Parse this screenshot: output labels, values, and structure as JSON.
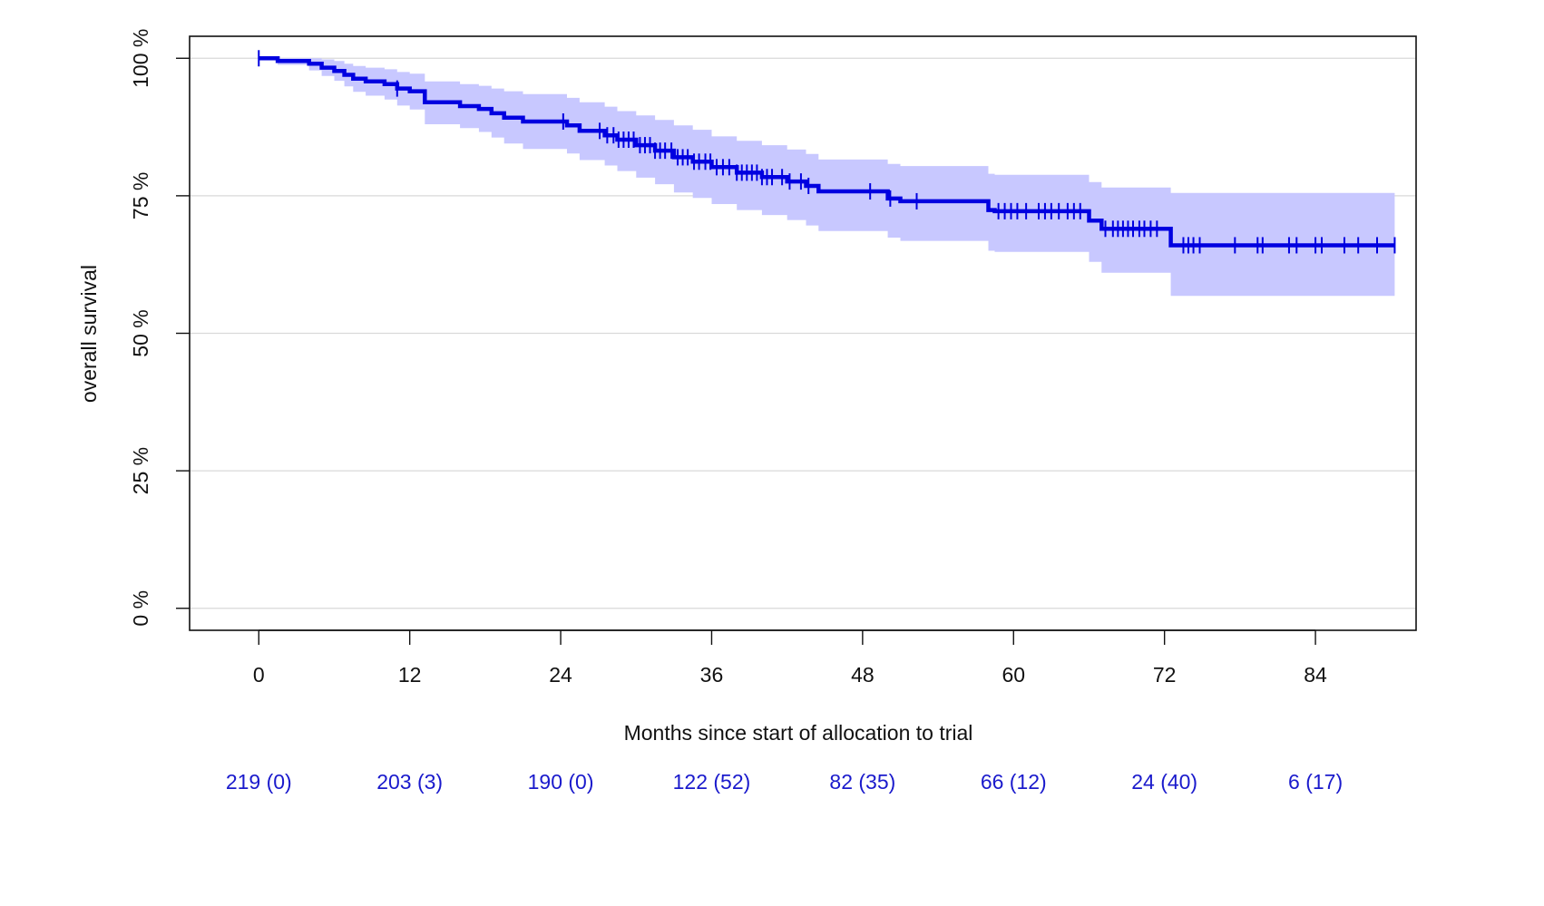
{
  "chart_data": {
    "type": "line",
    "subtype": "kaplan-meier",
    "title": "",
    "xlabel": "Months since start of allocation to trial",
    "ylabel": "overall survival",
    "xlim": [
      -5.5,
      92
    ],
    "ylim": [
      -4,
      104
    ],
    "x_ticks": [
      0,
      12,
      24,
      36,
      48,
      60,
      72,
      84
    ],
    "x_tick_labels": [
      "0",
      "12",
      "24",
      "36",
      "48",
      "60",
      "72",
      "84"
    ],
    "y_ticks": [
      0,
      25,
      50,
      75,
      100
    ],
    "y_tick_labels": [
      "0 %",
      "25 %",
      "50 %",
      "75 %",
      "100 %"
    ],
    "grid": "horizontal",
    "legend": "none",
    "colors": {
      "line": "#0000e0",
      "band": "#c8c8ff",
      "risk_text": "#1a1acc",
      "grid": "#d9d9d9"
    },
    "survival": {
      "x": [
        0,
        1.5,
        4,
        5,
        6,
        6.8,
        7.5,
        8.5,
        10,
        11,
        12,
        13.2,
        16,
        17.5,
        18.5,
        19.5,
        21,
        24.5,
        25.5,
        27.5,
        28.5,
        30,
        31.5,
        33,
        34.5,
        36,
        38,
        40,
        42,
        43.5,
        44.5,
        50,
        51,
        58,
        58.5,
        66,
        67,
        72.5,
        90.3
      ],
      "y": [
        100,
        99.5,
        99.0,
        98.3,
        97.7,
        97.0,
        96.3,
        95.8,
        95.3,
        94.5,
        94.0,
        92.0,
        91.3,
        90.8,
        90.0,
        89.2,
        88.5,
        87.8,
        86.8,
        86.0,
        85.2,
        84.2,
        83.2,
        82.0,
        81.2,
        80.2,
        79.2,
        78.4,
        77.6,
        76.8,
        75.8,
        74.5,
        74.0,
        72.4,
        72.2,
        70.5,
        69.0,
        66.0,
        66.0
      ]
    },
    "ci_upper": [
      100,
      100,
      100,
      99.8,
      99.5,
      99.0,
      98.6,
      98.3,
      98.0,
      97.5,
      97.2,
      95.8,
      95.3,
      95.0,
      94.5,
      94.0,
      93.5,
      92.8,
      92.0,
      91.2,
      90.4,
      89.6,
      88.8,
      87.8,
      87.0,
      85.8,
      85.0,
      84.2,
      83.4,
      82.6,
      81.6,
      80.8,
      80.4,
      79.0,
      78.8,
      77.5,
      76.5,
      75.5,
      75.5
    ],
    "ci_lower": [
      100,
      98.8,
      97.8,
      96.8,
      95.9,
      94.9,
      93.9,
      93.2,
      92.5,
      91.4,
      90.7,
      88.0,
      87.3,
      86.6,
      85.6,
      84.5,
      83.5,
      82.7,
      81.5,
      80.5,
      79.5,
      78.3,
      77.1,
      75.6,
      74.6,
      73.5,
      72.4,
      71.5,
      70.6,
      69.6,
      68.6,
      67.4,
      66.8,
      65.0,
      64.8,
      63.0,
      61.0,
      56.8,
      56.8
    ],
    "censor_times": [
      0,
      11,
      24.2,
      27.1,
      27.7,
      28.2,
      28.6,
      29.0,
      29.4,
      29.8,
      30.3,
      30.7,
      31.1,
      31.5,
      31.9,
      32.3,
      32.8,
      33.3,
      33.7,
      34.1,
      34.6,
      35.0,
      35.5,
      35.9,
      36.4,
      36.9,
      37.4,
      38.0,
      38.4,
      38.8,
      39.2,
      39.6,
      40.0,
      40.4,
      40.8,
      41.6,
      42.2,
      43.1,
      43.7,
      48.6,
      50.2,
      52.3,
      58.8,
      59.3,
      59.8,
      60.3,
      61.0,
      62.0,
      62.5,
      63.0,
      63.6,
      64.3,
      64.8,
      65.3,
      67.3,
      67.9,
      68.3,
      68.7,
      69.1,
      69.5,
      70.0,
      70.4,
      70.9,
      71.4,
      73.5,
      73.9,
      74.3,
      74.8,
      77.6,
      79.4,
      79.8,
      81.9,
      82.5,
      84.0,
      84.5,
      86.3,
      87.4,
      88.9,
      90.3
    ],
    "risk_table": {
      "times": [
        0,
        12,
        24,
        36,
        48,
        60,
        72,
        84
      ],
      "labels": [
        "219 (0)",
        "203 (3)",
        "190 (0)",
        "122 (52)",
        "82 (35)",
        "66 (12)",
        "24 (40)",
        "6 (17)"
      ]
    }
  }
}
